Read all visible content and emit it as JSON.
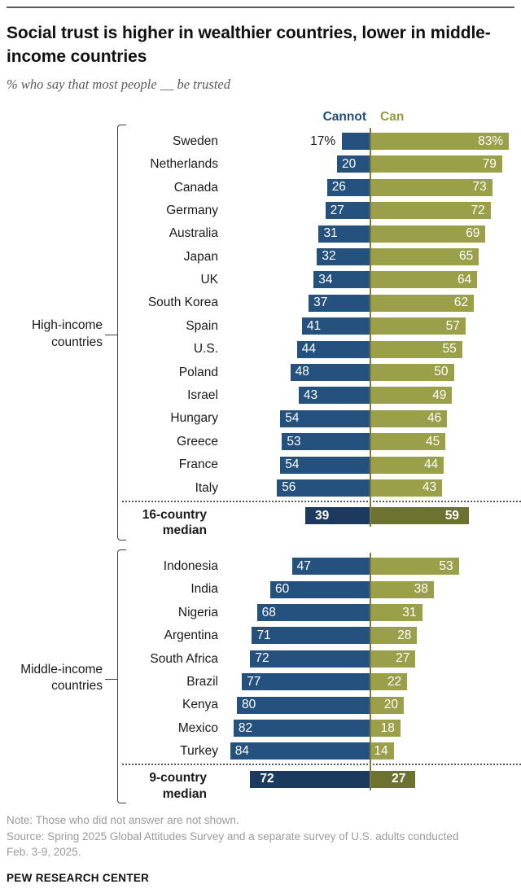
{
  "header": {
    "title": "Social trust is higher in wealthier countries, lower in middle-income countries",
    "subtitle": "% who say that most people __ be trusted"
  },
  "legend": {
    "cannot": "Cannot",
    "can": "Can"
  },
  "colors": {
    "cannot_bar": "#25517E",
    "can_bar": "#9A9F49",
    "median_cannot_bar": "#1B3A5D",
    "median_can_bar": "#6E7231",
    "center_line": "#7A7D3D",
    "legend_cannot_text": "#1F4E7B",
    "legend_can_text": "#979C3E"
  },
  "chart_data": {
    "type": "bar",
    "subtype": "diverging-horizontal",
    "title": "Social trust is higher in wealthier countries, lower in middle-income countries",
    "unit": "percent",
    "series": [
      "Cannot",
      "Can"
    ],
    "axis": {
      "min": 0,
      "max": 100,
      "gridlines": false,
      "center_divider": true
    },
    "legend_position": "top",
    "groups": [
      {
        "label_lines": [
          "High-income",
          "countries"
        ],
        "rows": [
          {
            "country": "Sweden",
            "cannot": 17,
            "can": 83,
            "cannot_display": "17%",
            "can_display": "83%",
            "cannot_label_outside": true
          },
          {
            "country": "Netherlands",
            "cannot": 20,
            "can": 79
          },
          {
            "country": "Canada",
            "cannot": 26,
            "can": 73
          },
          {
            "country": "Germany",
            "cannot": 27,
            "can": 72
          },
          {
            "country": "Australia",
            "cannot": 31,
            "can": 69
          },
          {
            "country": "Japan",
            "cannot": 32,
            "can": 65
          },
          {
            "country": "UK",
            "cannot": 34,
            "can": 64
          },
          {
            "country": "South Korea",
            "cannot": 37,
            "can": 62
          },
          {
            "country": "Spain",
            "cannot": 41,
            "can": 57
          },
          {
            "country": "U.S.",
            "cannot": 44,
            "can": 55
          },
          {
            "country": "Poland",
            "cannot": 48,
            "can": 50
          },
          {
            "country": "Israel",
            "cannot": 43,
            "can": 49
          },
          {
            "country": "Hungary",
            "cannot": 54,
            "can": 46
          },
          {
            "country": "Greece",
            "cannot": 53,
            "can": 45
          },
          {
            "country": "France",
            "cannot": 54,
            "can": 44
          },
          {
            "country": "Italy",
            "cannot": 56,
            "can": 43
          }
        ],
        "median": {
          "label_lines": [
            "16-country",
            "median"
          ],
          "cannot": 39,
          "can": 59
        }
      },
      {
        "label_lines": [
          "Middle-income",
          "countries"
        ],
        "rows": [
          {
            "country": "Indonesia",
            "cannot": 47,
            "can": 53
          },
          {
            "country": "India",
            "cannot": 60,
            "can": 38
          },
          {
            "country": "Nigeria",
            "cannot": 68,
            "can": 31
          },
          {
            "country": "Argentina",
            "cannot": 71,
            "can": 28
          },
          {
            "country": "South Africa",
            "cannot": 72,
            "can": 27
          },
          {
            "country": "Brazil",
            "cannot": 77,
            "can": 22
          },
          {
            "country": "Kenya",
            "cannot": 80,
            "can": 20
          },
          {
            "country": "Mexico",
            "cannot": 82,
            "can": 18
          },
          {
            "country": "Turkey",
            "cannot": 84,
            "can": 14
          }
        ],
        "median": {
          "label_lines": [
            "9-country",
            "median"
          ],
          "cannot": 72,
          "can": 27
        }
      }
    ]
  },
  "footer": {
    "note": "Note: Those who did not answer are not shown.",
    "source": "Source: Spring 2025 Global Attitudes Survey and a separate survey of U.S. adults conducted Feb. 3-9, 2025.",
    "brand": "PEW RESEARCH CENTER"
  }
}
